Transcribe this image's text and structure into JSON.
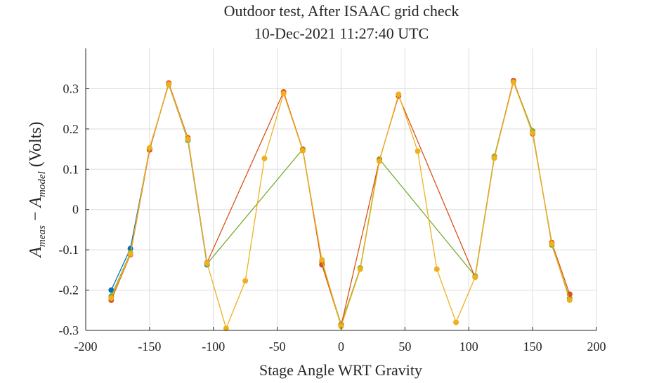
{
  "chart_data": {
    "type": "line",
    "title": "Outdoor test, After ISAAC grid check",
    "subtitle": "10-Dec-2021 11:27:40 UTC",
    "xlabel": "Stage Angle WRT Gravity",
    "ylabel_parts": {
      "a1": "A",
      "sub1": "meas",
      "minus": " − ",
      "a2": "A",
      "sub2": "model",
      "units": " (Volts)"
    },
    "xlim": [
      -200,
      200
    ],
    "ylim": [
      -0.3,
      0.4
    ],
    "xticks": [
      -200,
      -150,
      -100,
      -50,
      0,
      50,
      100,
      150,
      200
    ],
    "yticks": [
      -0.3,
      -0.2,
      -0.1,
      0,
      0.1,
      0.2,
      0.3
    ],
    "xtick_labels": [
      "-200",
      "-150",
      "-100",
      "-50",
      "0",
      "50",
      "100",
      "150",
      "200"
    ],
    "ytick_labels": [
      "-0.3",
      "-0.2",
      "-0.1",
      "0",
      "0.1",
      "0.2",
      "0.3"
    ],
    "grid": true,
    "colors": [
      "#0072BD",
      "#77AC30",
      "#D95319",
      "#EDB120"
    ],
    "series": [
      {
        "x": [
          -180,
          -165,
          -150,
          -135,
          -120,
          -105
        ],
        "y": [
          -0.2,
          -0.097,
          0.15,
          0.312,
          0.172,
          -0.137
        ]
      },
      {
        "x": [
          -180,
          -165,
          -150,
          -135,
          -120,
          -105,
          -30,
          -15,
          0,
          15,
          30,
          105,
          120,
          135,
          150,
          165,
          179
        ],
        "y": [
          -0.215,
          -0.108,
          0.152,
          0.31,
          0.173,
          -0.135,
          0.15,
          -0.13,
          -0.285,
          -0.145,
          0.125,
          -0.165,
          0.132,
          0.318,
          0.195,
          -0.088,
          -0.22
        ]
      },
      {
        "x": [
          -180,
          -165,
          -150,
          -135,
          -120,
          -105,
          -45,
          -30,
          -15,
          0,
          30,
          45,
          105,
          120,
          135,
          150,
          165,
          179
        ],
        "y": [
          -0.225,
          -0.112,
          0.148,
          0.314,
          0.178,
          -0.132,
          0.292,
          0.148,
          -0.137,
          -0.288,
          0.122,
          0.282,
          -0.168,
          0.128,
          0.32,
          0.188,
          -0.082,
          -0.21
        ]
      },
      {
        "x": [
          -180,
          -165,
          -150,
          -135,
          -120,
          -105,
          -90,
          -75,
          -60,
          -45,
          -30,
          -15,
          0,
          15,
          30,
          45,
          60,
          75,
          90,
          105,
          120,
          135,
          150,
          165,
          179
        ],
        "y": [
          -0.22,
          -0.11,
          0.153,
          0.311,
          0.175,
          -0.133,
          -0.295,
          -0.177,
          0.127,
          0.288,
          0.146,
          -0.125,
          -0.29,
          -0.148,
          0.12,
          0.286,
          0.145,
          -0.148,
          -0.28,
          -0.168,
          0.128,
          0.316,
          0.19,
          -0.085,
          -0.225
        ]
      }
    ]
  }
}
